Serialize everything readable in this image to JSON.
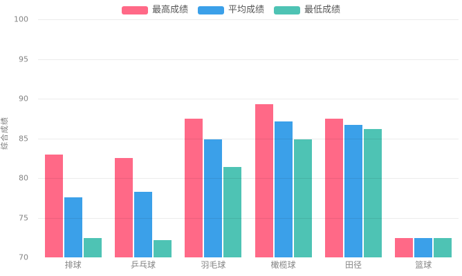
{
  "chart_data": {
    "type": "bar",
    "title": "",
    "xlabel": "",
    "ylabel": "综合成绩",
    "ylim": [
      70,
      100
    ],
    "yticks": [
      70,
      75,
      80,
      85,
      90,
      95,
      100
    ],
    "grid": true,
    "legend_position": "top-center",
    "categories": [
      "排球",
      "乒乓球",
      "羽毛球",
      "橄榄球",
      "田径",
      "篮球"
    ],
    "series": [
      {
        "name": "最高成绩",
        "color": "#FF6987",
        "values": [
          83.0,
          82.5,
          87.5,
          89.3,
          87.5,
          72.4
        ]
      },
      {
        "name": "平均成绩",
        "color": "#3BA0E9",
        "values": [
          77.6,
          78.3,
          84.9,
          87.1,
          86.7,
          72.4
        ]
      },
      {
        "name": "最低成绩",
        "color": "#4EC3B4",
        "values": [
          72.4,
          72.2,
          81.4,
          84.9,
          86.2,
          72.4
        ]
      }
    ],
    "colors": {
      "tick_text": "#848484",
      "axis_title_text": "#7b7b7b",
      "legend_text": "#555555",
      "gridline": "rgba(0,0,0,0.08)",
      "background": "#ffffff"
    }
  }
}
